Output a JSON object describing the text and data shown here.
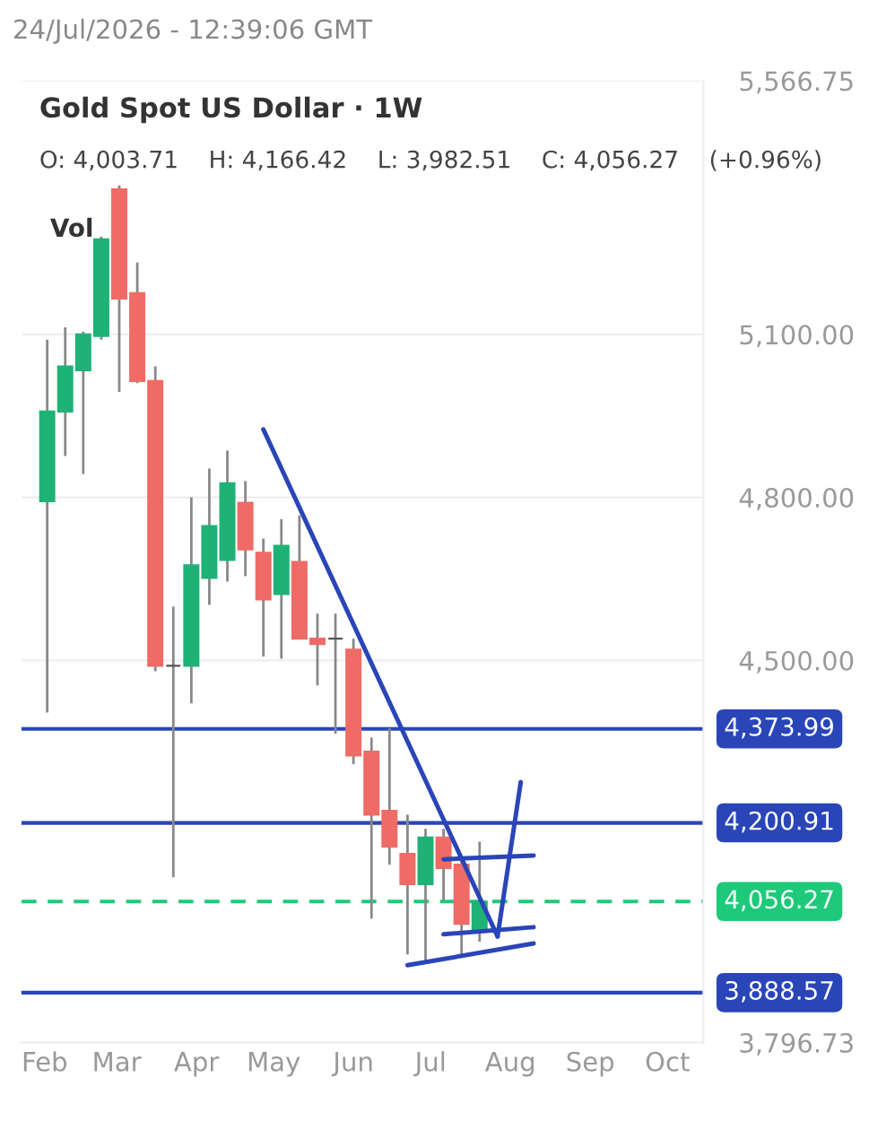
{
  "chart_data": {
    "type": "candlestick",
    "title": "Gold Spot US Dollar · 1W",
    "subtitle": "O: 4,003.71    H: 4,166.42    L: 3,982.51    C: 4,056.27    (+0.96%)",
    "annotations": [
      "24/Jul/2026 - 12:39:06 GMT",
      "Vol"
    ],
    "x": [
      "2026-02-02",
      "2026-02-09",
      "2026-02-16",
      "2026-02-23",
      "2026-03-02",
      "2026-03-09",
      "2026-03-16",
      "2026-03-23",
      "2026-03-30",
      "2026-04-06",
      "2026-04-13",
      "2026-04-20",
      "2026-04-27",
      "2026-05-04",
      "2026-05-11",
      "2026-05-18",
      "2026-05-25",
      "2026-06-01",
      "2026-06-08",
      "2026-06-15",
      "2026-06-22",
      "2026-06-29",
      "2026-07-06",
      "2026-07-13",
      "2026-07-20"
    ],
    "ohlc": [
      [
        4793,
        5090,
        4404,
        4958
      ],
      [
        4958,
        5113,
        4876,
        5041
      ],
      [
        5034,
        5105,
        4843,
        5100
      ],
      [
        5097,
        5280,
        5090,
        5275
      ],
      [
        5367,
        5374,
        4994,
        5166
      ],
      [
        5176,
        5232,
        5010,
        5014
      ],
      [
        5014,
        5041,
        4480,
        4490
      ],
      [
        4490,
        4599,
        4101,
        4490
      ],
      [
        4490,
        4800,
        4421,
        4675
      ],
      [
        4652,
        4853,
        4602,
        4747
      ],
      [
        4685,
        4886,
        4645,
        4826
      ],
      [
        4790,
        4830,
        4655,
        4704
      ],
      [
        4698,
        4724,
        4507,
        4612
      ],
      [
        4622,
        4760,
        4503,
        4711
      ],
      [
        4681,
        4767,
        4540,
        4540
      ],
      [
        4540,
        4586,
        4454,
        4530
      ],
      [
        4540,
        4586,
        4365,
        4540
      ],
      [
        4520,
        4540,
        4309,
        4325
      ],
      [
        4332,
        4358,
        4025,
        4216
      ],
      [
        4223,
        4375,
        4124,
        4157
      ],
      [
        4144,
        4216,
        3959,
        4088
      ],
      [
        4088,
        4190,
        3946,
        4174
      ],
      [
        4174,
        4190,
        4058,
        4118
      ],
      [
        4124,
        4134,
        3959,
        4015
      ],
      [
        4003.71,
        4166.42,
        3982.51,
        4056.27
      ]
    ],
    "colors": [
      "#1fb276",
      "#1fb276",
      "#1fb276",
      "#1fb276",
      "#ef6b66",
      "#ef6b66",
      "#ef6b66",
      "#555555",
      "#1fb276",
      "#1fb276",
      "#1fb276",
      "#ef6b66",
      "#ef6b66",
      "#1fb276",
      "#ef6b66",
      "#ef6b66",
      "#555555",
      "#ef6b66",
      "#ef6b66",
      "#ef6b66",
      "#ef6b66",
      "#1fb276",
      "#ef6b66",
      "#ef6b66",
      "#1fb276"
    ],
    "series": [
      {
        "type": "line",
        "color": "#2a45b8",
        "x": [
          "2026-04-27",
          "2026-07-27"
        ],
        "values": [
          4925,
          3992
        ]
      },
      {
        "type": "line",
        "color": "#2a45b8",
        "x": [
          "2026-07-27",
          "2026-08-05"
        ],
        "values": [
          3992,
          4276
        ]
      },
      {
        "type": "line",
        "color": "#2a45b8",
        "x": [
          "2026-07-06",
          "2026-08-10"
        ],
        "values": [
          4134,
          4141
        ]
      },
      {
        "type": "line",
        "color": "#2a45b8",
        "x": [
          "2026-07-06",
          "2026-08-10"
        ],
        "values": [
          3996,
          4009
        ]
      },
      {
        "type": "line",
        "color": "#2a45b8",
        "x": [
          "2026-06-22",
          "2026-08-10"
        ],
        "values": [
          3939,
          3979
        ]
      }
    ],
    "ref_lines": [
      {
        "axis": "y",
        "value": 4373.99,
        "label": "4,373.99",
        "color": "#2a45b8",
        "line_style": "solid"
      },
      {
        "axis": "y",
        "value": 4200.91,
        "label": "4,200.91",
        "color": "#2a45b8",
        "line_style": "solid"
      },
      {
        "axis": "y",
        "value": 4056.27,
        "label": "4,056.27",
        "color": "#1ec97a",
        "line_style": "dashed"
      },
      {
        "axis": "y",
        "value": 3888.57,
        "label": "3,888.57",
        "color": "#2a45b8",
        "line_style": "solid"
      }
    ],
    "xlim": [
      "2026-01-23",
      "2026-10-15"
    ],
    "xticks": [
      {
        "value": "2026-02-01",
        "label": "Feb"
      },
      {
        "value": "2026-03-01",
        "label": "Mar"
      },
      {
        "value": "2026-04-01",
        "label": "Apr"
      },
      {
        "value": "2026-05-01",
        "label": "May"
      },
      {
        "value": "2026-06-01",
        "label": "Jun"
      },
      {
        "value": "2026-07-01",
        "label": "Jul"
      },
      {
        "value": "2026-08-01",
        "label": "Aug"
      },
      {
        "value": "2026-09-01",
        "label": "Sep"
      },
      {
        "value": "2026-10-01",
        "label": "Oct"
      }
    ],
    "ylim": [
      3796.73,
      5566.75
    ],
    "yticks": [
      {
        "value": 3796.73,
        "label": "3,796.73"
      },
      {
        "value": 4500,
        "label": "4,500.00"
      },
      {
        "value": 4800,
        "label": "4,800.00"
      },
      {
        "value": 5100,
        "label": "5,100.00"
      },
      {
        "value": 5566.75,
        "label": "5,566.75"
      }
    ],
    "grid": "y",
    "line_style": "solid"
  }
}
